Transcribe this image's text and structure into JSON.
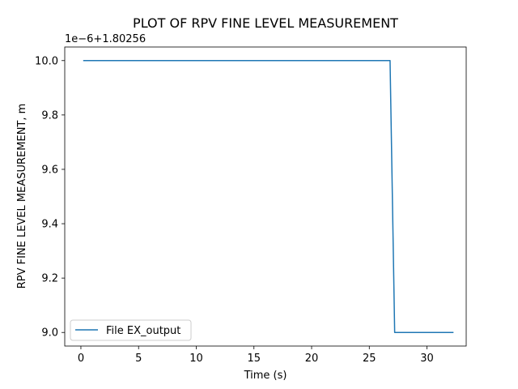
{
  "chart_data": {
    "type": "line",
    "title": "PLOT OF RPV FINE LEVEL MEASUREMENT",
    "xlabel": "Time (s)",
    "ylabel": "RPV FINE LEVEL MEASUREMENT, m",
    "y_offset_label": "1e−6+1.80256",
    "xlim": [
      -1.4,
      33.4
    ],
    "ylim": [
      8.95,
      10.05
    ],
    "x_ticks": [
      0,
      5,
      10,
      15,
      20,
      25,
      30
    ],
    "x_tick_labels": [
      "0",
      "5",
      "10",
      "15",
      "20",
      "25",
      "30"
    ],
    "y_ticks": [
      9.0,
      9.2,
      9.4,
      9.6,
      9.8,
      10.0
    ],
    "y_tick_labels": [
      "9.0",
      "9.2",
      "9.4",
      "9.6",
      "9.8",
      "10.0"
    ],
    "grid": false,
    "legend_position": "lower-left",
    "series": [
      {
        "name": "File EX_output",
        "color": "#1f77b4",
        "x": [
          0.2,
          26.8,
          27.2,
          32.3
        ],
        "y": [
          10.0,
          10.0,
          9.0,
          9.0
        ]
      }
    ]
  }
}
